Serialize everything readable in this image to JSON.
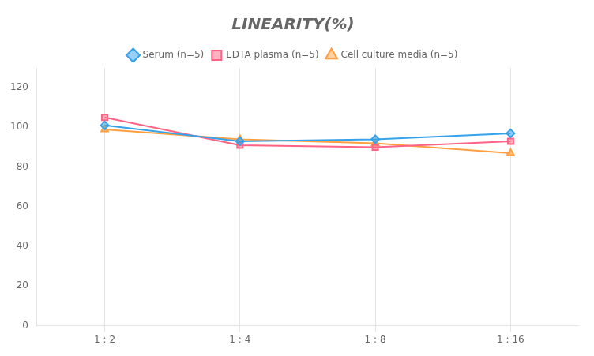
{
  "chart_data": {
    "type": "line",
    "title": "LINEARITY(%)",
    "categories": [
      "1 : 2",
      "1 : 4",
      "1 : 8",
      "1 : 16"
    ],
    "series": [
      {
        "name": "Serum (n=5)",
        "values": [
          101,
          93,
          94,
          97
        ],
        "marker": "diamond"
      },
      {
        "name": "EDTA plasma (n=5)",
        "values": [
          105,
          91,
          90,
          93
        ],
        "marker": "square"
      },
      {
        "name": "Cell culture media (n=5)",
        "values": [
          99,
          94,
          92,
          87
        ],
        "marker": "triangle"
      }
    ],
    "ylim": [
      0,
      130
    ],
    "yticks": [
      0,
      20,
      40,
      60,
      80,
      100,
      120
    ],
    "grid": "x",
    "legend": "top"
  }
}
